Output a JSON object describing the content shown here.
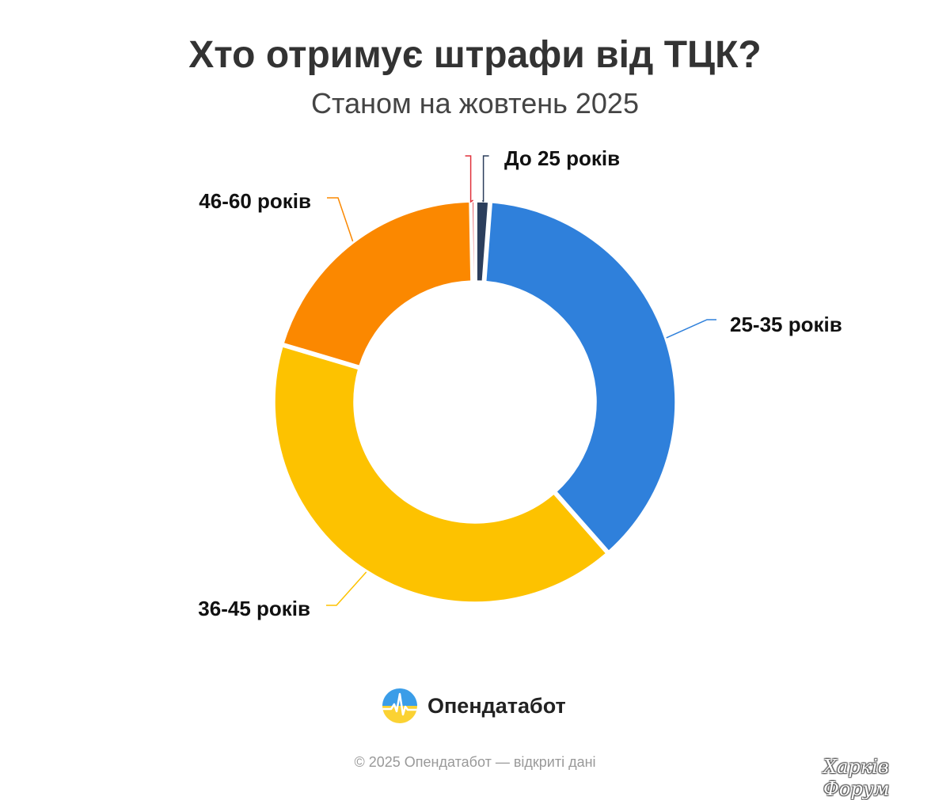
{
  "header": {
    "title": "Хто отримує штрафи від ТЦК?",
    "subtitle": "Станом на жовтень 2025"
  },
  "chart_data": {
    "type": "pie",
    "title": "Хто отримує штрафи від ТЦК?",
    "subtitle": "Станом на жовтень 2025",
    "donut": true,
    "slices": [
      {
        "label": "До 25 років",
        "value": 1.2,
        "color": "#2c3e5c"
      },
      {
        "label": "25-35 років",
        "value": 37.3,
        "color": "#2f80db"
      },
      {
        "label": "36-45 років",
        "value": 41.1,
        "color": "#fdc200"
      },
      {
        "label": "46-60 років",
        "value": 20.1,
        "color": "#fb8800"
      },
      {
        "label": "",
        "value": 0.3,
        "color": "#e0323c"
      }
    ]
  },
  "footer": {
    "brand": "Опендатабот",
    "copyright": "© 2025 Опендатабот — відкриті дані",
    "watermark": "Харків Форум"
  }
}
